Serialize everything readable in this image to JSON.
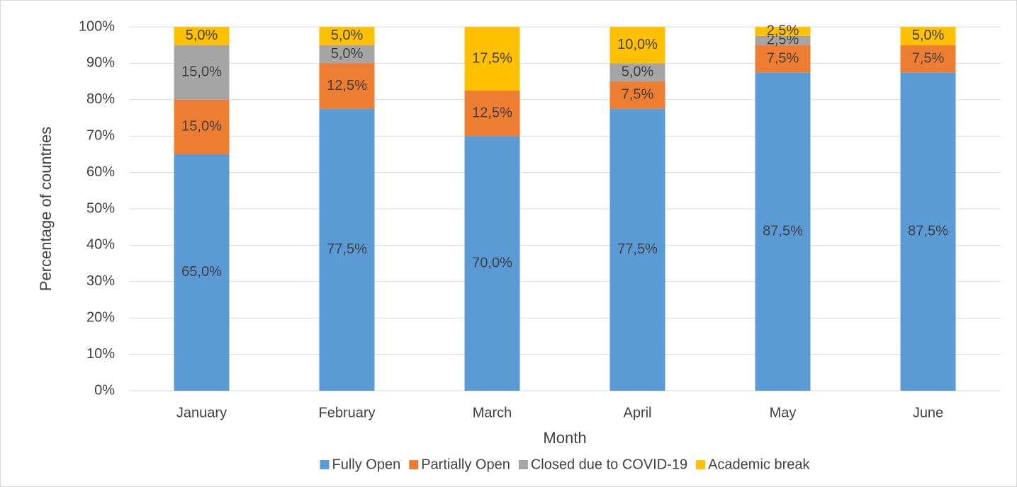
{
  "chart_data": {
    "type": "stacked_bar",
    "x_label": "Month",
    "y_label": "Percentage of countries",
    "categories": [
      "January",
      "February",
      "March",
      "April",
      "May",
      "June"
    ],
    "series": [
      {
        "name": "Fully Open",
        "color": "#5b9bd5",
        "values": [
          65,
          77.5,
          70,
          77.5,
          87.5,
          87.5
        ],
        "value_labels": [
          "65,0%",
          "77,5%",
          "70,0%",
          "77,5%",
          "87,5%",
          "87,5%"
        ]
      },
      {
        "name": "Partially Open",
        "color": "#ed7d31",
        "values": [
          15,
          12.5,
          12.5,
          7.5,
          7.5,
          7.5
        ],
        "value_labels": [
          "15,0%",
          "12,5%",
          "12,5%",
          "7,5%",
          "7,5%",
          "7,5%"
        ]
      },
      {
        "name": "Closed due to COVID-19",
        "color": "#a5a5a5",
        "values": [
          15,
          5,
          0,
          5,
          2.5,
          0
        ],
        "value_labels": [
          "15,0%",
          "5,0%",
          null,
          "5,0%",
          "2,5%",
          null
        ]
      },
      {
        "name": "Academic break",
        "color": "#ffc000",
        "values": [
          5,
          5,
          17.5,
          10,
          2.5,
          5
        ],
        "value_labels": [
          "5,0%",
          "5,0%",
          "17,5%",
          "10,0%",
          "2,5%",
          "5,0%"
        ]
      }
    ],
    "ylim": [
      0,
      100
    ],
    "yticks": [
      {
        "value": 0,
        "label": "0%"
      },
      {
        "value": 10,
        "label": "10%"
      },
      {
        "value": 20,
        "label": "20%"
      },
      {
        "value": 30,
        "label": "30%"
      },
      {
        "value": 40,
        "label": "40%"
      },
      {
        "value": 50,
        "label": "50%"
      },
      {
        "value": 60,
        "label": "60%"
      },
      {
        "value": 70,
        "label": "70%"
      },
      {
        "value": 80,
        "label": "80%"
      },
      {
        "value": 90,
        "label": "90%"
      },
      {
        "value": 100,
        "label": "100%"
      }
    ],
    "grid": true,
    "legend": "bottom"
  }
}
